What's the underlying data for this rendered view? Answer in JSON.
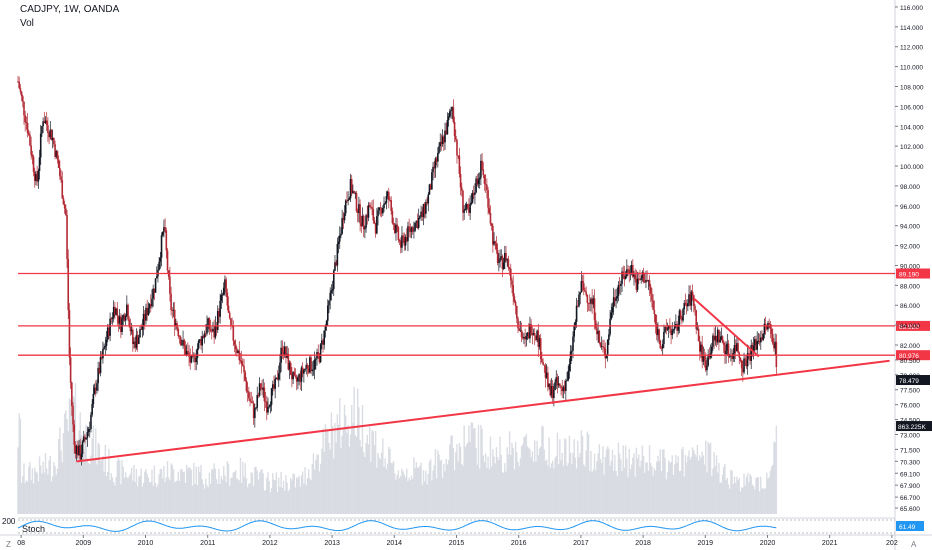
{
  "header": {
    "title": "CADJPY, 1W, OANDA",
    "volume_label": "Vol"
  },
  "stoch": {
    "label": "Stoch",
    "top_label": "200",
    "value_badge": "61.49",
    "color": "#2196f3"
  },
  "corner": {
    "left": "Z",
    "right": "A"
  },
  "chart_data": {
    "type": "candlestick",
    "symbol": "CADJPY",
    "interval": "1W",
    "source": "OANDA",
    "ylim": [
      64.6,
      116.7
    ],
    "y_ticks": [
      "65.600",
      "66.700",
      "67.900",
      "69.100",
      "70.300",
      "71.500",
      "73.000",
      "74.500",
      "76.000",
      "77.500",
      "79.000",
      "80.500",
      "82.000",
      "84.000",
      "86.000",
      "88.000",
      "90.000",
      "92.000",
      "94.000",
      "96.000",
      "98.000",
      "100.000",
      "102.000",
      "104.000",
      "106.000",
      "108.000",
      "110.000",
      "112.000",
      "114.000",
      "116.000"
    ],
    "x_ticks": [
      {
        "label": "08",
        "t": 2008.0
      },
      {
        "label": "2009",
        "t": 2009.0
      },
      {
        "label": "2010",
        "t": 2010.0
      },
      {
        "label": "2011",
        "t": 2011.0
      },
      {
        "label": "2012",
        "t": 2012.0
      },
      {
        "label": "2013",
        "t": 2013.0
      },
      {
        "label": "2014",
        "t": 2014.0
      },
      {
        "label": "2015",
        "t": 2015.0
      },
      {
        "label": "2016",
        "t": 2016.0
      },
      {
        "label": "2017",
        "t": 2017.0
      },
      {
        "label": "2018",
        "t": 2018.0
      },
      {
        "label": "2019",
        "t": 2019.0
      },
      {
        "label": "2020",
        "t": 2020.0
      },
      {
        "label": "2021",
        "t": 2021.0
      },
      {
        "label": "202",
        "t": 2022.0
      }
    ],
    "price_path": [
      [
        2007.95,
        108.5
      ],
      [
        2008.1,
        104
      ],
      [
        2008.25,
        98
      ],
      [
        2008.35,
        105
      ],
      [
        2008.5,
        103
      ],
      [
        2008.6,
        100
      ],
      [
        2008.72,
        95
      ],
      [
        2008.78,
        80
      ],
      [
        2008.85,
        72
      ],
      [
        2008.95,
        71
      ],
      [
        2009.1,
        74
      ],
      [
        2009.2,
        78
      ],
      [
        2009.35,
        82
      ],
      [
        2009.5,
        86
      ],
      [
        2009.6,
        84
      ],
      [
        2009.7,
        86
      ],
      [
        2009.8,
        82
      ],
      [
        2009.9,
        83
      ],
      [
        2010.05,
        86
      ],
      [
        2010.15,
        88
      ],
      [
        2010.25,
        92
      ],
      [
        2010.3,
        94
      ],
      [
        2010.4,
        86
      ],
      [
        2010.5,
        84
      ],
      [
        2010.6,
        82
      ],
      [
        2010.75,
        80
      ],
      [
        2010.85,
        82
      ],
      [
        2011.0,
        84
      ],
      [
        2011.1,
        83
      ],
      [
        2011.2,
        86
      ],
      [
        2011.28,
        88
      ],
      [
        2011.35,
        84
      ],
      [
        2011.45,
        82
      ],
      [
        2011.55,
        80
      ],
      [
        2011.65,
        77
      ],
      [
        2011.75,
        75
      ],
      [
        2011.85,
        78
      ],
      [
        2011.95,
        76
      ],
      [
        2012.1,
        78
      ],
      [
        2012.2,
        82
      ],
      [
        2012.3,
        80
      ],
      [
        2012.4,
        78
      ],
      [
        2012.5,
        79
      ],
      [
        2012.6,
        80
      ],
      [
        2012.7,
        80
      ],
      [
        2012.8,
        81
      ],
      [
        2012.9,
        84
      ],
      [
        2013.0,
        88
      ],
      [
        2013.1,
        92
      ],
      [
        2013.2,
        96
      ],
      [
        2013.3,
        98
      ],
      [
        2013.4,
        96
      ],
      [
        2013.5,
        94
      ],
      [
        2013.6,
        96
      ],
      [
        2013.7,
        94
      ],
      [
        2013.8,
        96
      ],
      [
        2013.9,
        97
      ],
      [
        2014.0,
        94
      ],
      [
        2014.1,
        92
      ],
      [
        2014.2,
        93
      ],
      [
        2014.3,
        94
      ],
      [
        2014.45,
        95
      ],
      [
        2014.55,
        97
      ],
      [
        2014.65,
        100
      ],
      [
        2014.75,
        102
      ],
      [
        2014.85,
        104
      ],
      [
        2014.93,
        106
      ],
      [
        2015.0,
        102
      ],
      [
        2015.1,
        96
      ],
      [
        2015.2,
        95
      ],
      [
        2015.3,
        98
      ],
      [
        2015.4,
        100
      ],
      [
        2015.5,
        97
      ],
      [
        2015.6,
        92
      ],
      [
        2015.7,
        90
      ],
      [
        2015.8,
        91
      ],
      [
        2015.9,
        88
      ],
      [
        2016.0,
        84
      ],
      [
        2016.1,
        82
      ],
      [
        2016.2,
        84
      ],
      [
        2016.3,
        83
      ],
      [
        2016.4,
        80
      ],
      [
        2016.5,
        77
      ],
      [
        2016.6,
        78
      ],
      [
        2016.7,
        77.5
      ],
      [
        2016.8,
        79
      ],
      [
        2016.9,
        84
      ],
      [
        2017.0,
        88
      ],
      [
        2017.1,
        87
      ],
      [
        2017.2,
        86
      ],
      [
        2017.3,
        82
      ],
      [
        2017.4,
        81
      ],
      [
        2017.5,
        86
      ],
      [
        2017.6,
        88
      ],
      [
        2017.7,
        89
      ],
      [
        2017.8,
        90
      ],
      [
        2017.9,
        88
      ],
      [
        2018.0,
        89
      ],
      [
        2018.1,
        88
      ],
      [
        2018.2,
        84
      ],
      [
        2018.3,
        82
      ],
      [
        2018.4,
        84
      ],
      [
        2018.5,
        83
      ],
      [
        2018.6,
        85
      ],
      [
        2018.7,
        86
      ],
      [
        2018.8,
        87
      ],
      [
        2018.9,
        82
      ],
      [
        2019.0,
        80
      ],
      [
        2019.1,
        82
      ],
      [
        2019.2,
        83
      ],
      [
        2019.3,
        82
      ],
      [
        2019.4,
        81
      ],
      [
        2019.5,
        82
      ],
      [
        2019.6,
        80
      ],
      [
        2019.7,
        81
      ],
      [
        2019.8,
        82
      ],
      [
        2019.9,
        83
      ],
      [
        2020.0,
        84
      ],
      [
        2020.08,
        83
      ],
      [
        2020.12,
        82
      ],
      [
        2020.16,
        79
      ]
    ],
    "volume_profile": [
      [
        2008.0,
        0.35
      ],
      [
        2008.5,
        0.45
      ],
      [
        2008.85,
        0.95
      ],
      [
        2009.0,
        0.75
      ],
      [
        2009.5,
        0.4
      ],
      [
        2010.0,
        0.35
      ],
      [
        2010.5,
        0.4
      ],
      [
        2011.0,
        0.35
      ],
      [
        2011.5,
        0.4
      ],
      [
        2012.0,
        0.3
      ],
      [
        2012.5,
        0.3
      ],
      [
        2013.0,
        0.75
      ],
      [
        2013.35,
        0.95
      ],
      [
        2013.7,
        0.65
      ],
      [
        2014.0,
        0.4
      ],
      [
        2014.5,
        0.4
      ],
      [
        2014.9,
        0.55
      ],
      [
        2015.2,
        0.7
      ],
      [
        2015.6,
        0.55
      ],
      [
        2016.0,
        0.6
      ],
      [
        2016.4,
        0.65
      ],
      [
        2016.8,
        0.55
      ],
      [
        2017.0,
        0.6
      ],
      [
        2017.5,
        0.5
      ],
      [
        2018.0,
        0.5
      ],
      [
        2018.4,
        0.45
      ],
      [
        2018.8,
        0.5
      ],
      [
        2019.0,
        0.55
      ],
      [
        2019.5,
        0.3
      ],
      [
        2019.9,
        0.3
      ],
      [
        2020.0,
        0.35
      ],
      [
        2020.15,
        0.75
      ]
    ],
    "horizontal_levels": [
      {
        "price": 89.19,
        "label": "89.190",
        "color": "#f23645"
      },
      {
        "price": 83.92,
        "label": "83.920",
        "color": "#f23645"
      },
      {
        "price": 80.976,
        "label": "80.976",
        "color": "#f23645"
      }
    ],
    "current_price": {
      "price": 78.479,
      "label": "78.479",
      "color": "#131722"
    },
    "volume_badge": {
      "label": "863.225K",
      "color": "#131722"
    },
    "trendlines": [
      {
        "t1": 2008.9,
        "p1": 70.3,
        "t2": 2021.95,
        "p2": 80.4,
        "color": "#f23645"
      },
      {
        "t1": 2018.83,
        "p1": 86.6,
        "t2": 2019.85,
        "p2": 80.9,
        "color": "#f23645"
      }
    ],
    "up_color": "#131722",
    "down_color": "#b22833",
    "volume_color": "#d1d4dc"
  }
}
